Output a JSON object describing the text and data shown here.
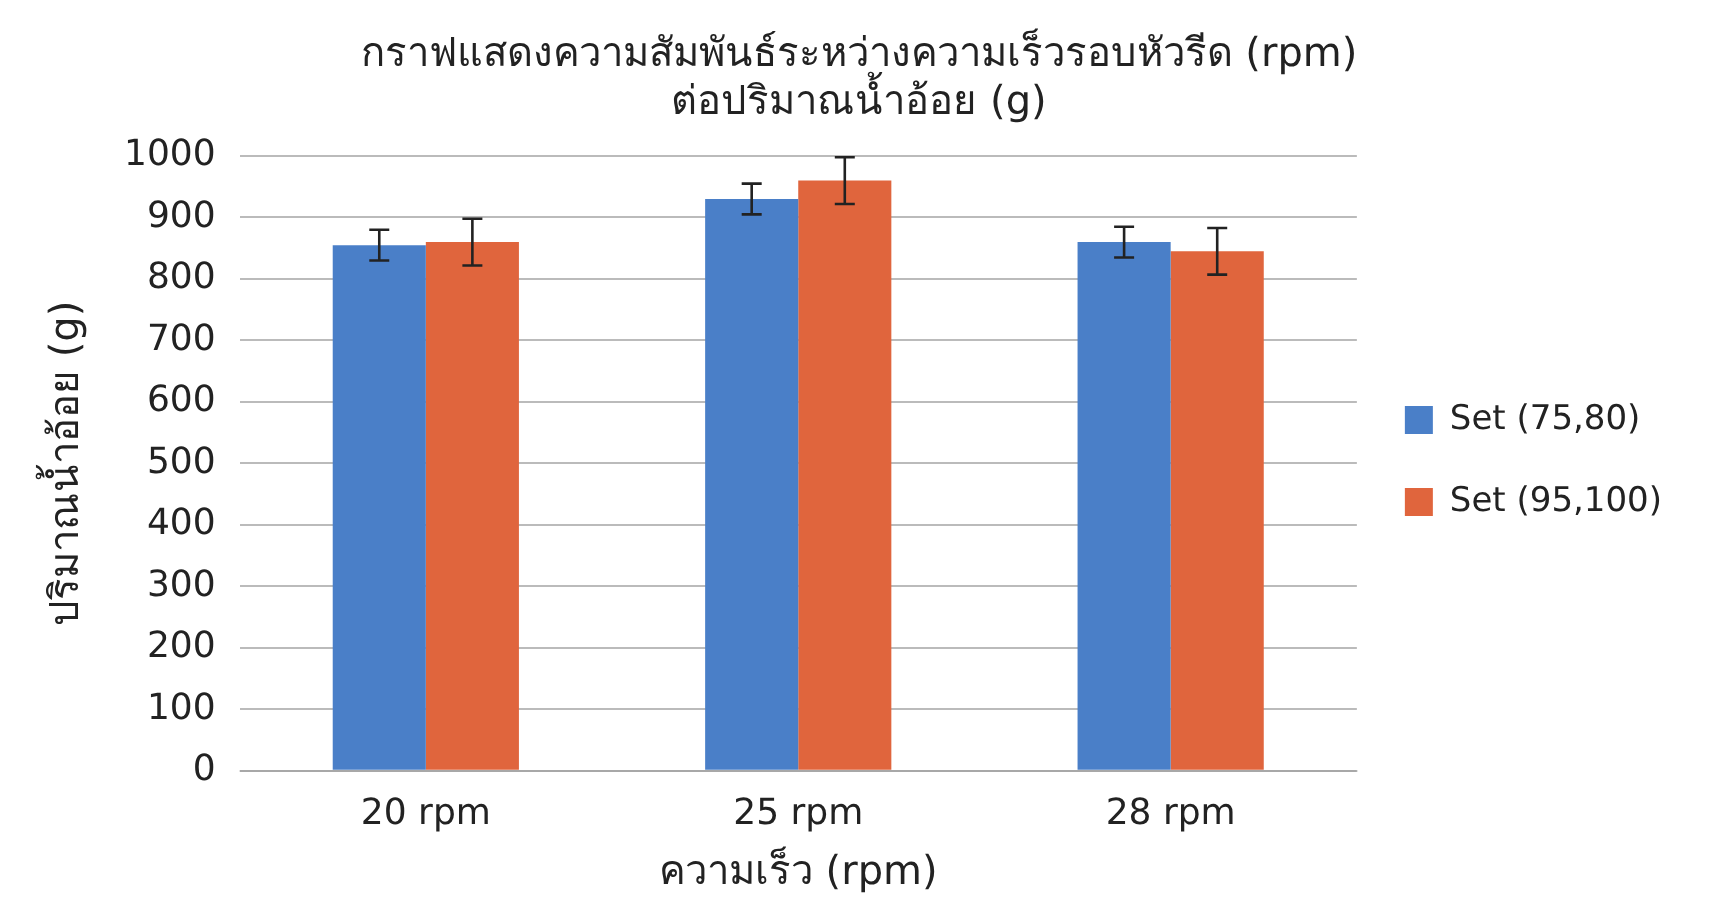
{
  "chart_data": {
    "type": "bar",
    "title": [
      "กราฟแสดงความสัมพันธ์ระหว่างความเร็วรอบหัวรีด (rpm)",
      "ต่อปริมาณน้ำอ้อย (g)"
    ],
    "xlabel": "ความเร็ว (rpm)",
    "ylabel": "ปริมาณน้ำอ้อย (g)",
    "categories": [
      "20 rpm",
      "25 rpm",
      "28 rpm"
    ],
    "series": [
      {
        "name": "Set (75,80)",
        "color": "#4a7fc8",
        "values": [
          855,
          930,
          860
        ],
        "errors": [
          25,
          25,
          25
        ]
      },
      {
        "name": "Set (95,100)",
        "color": "#e0653d",
        "values": [
          860,
          960,
          845
        ],
        "errors": [
          38,
          38,
          38
        ]
      }
    ],
    "ylim": [
      0,
      1000
    ],
    "yticks": [
      0,
      100,
      200,
      300,
      400,
      500,
      600,
      700,
      800,
      900,
      1000
    ],
    "grid": "y",
    "legend": "right"
  }
}
